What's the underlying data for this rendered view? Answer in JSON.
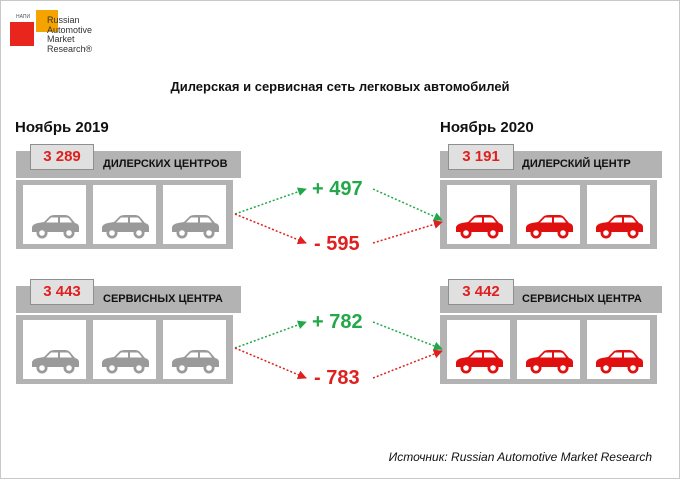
{
  "logo": {
    "small_text": "НАПИ",
    "lines": [
      "Russian",
      "Automotive",
      "Market",
      "Research®"
    ]
  },
  "title": "Дилерская и сервисная сеть легковых автомобилей",
  "left": {
    "year": "Ноябрь 2019",
    "dealers": {
      "count": "3 289",
      "label": "ДИЛЕРСКИХ ЦЕНТРОВ"
    },
    "service": {
      "count": "3 443",
      "label": "СЕРВИСНЫХ ЦЕНТРА"
    }
  },
  "right": {
    "year": "Ноябрь 2020",
    "dealers": {
      "count": "3 191",
      "label": "ДИЛЕРСКИЙ ЦЕНТР"
    },
    "service": {
      "count": "3 442",
      "label": "СЕРВИСНЫХ ЦЕНТРА"
    }
  },
  "changes": {
    "dealers": {
      "opened": "+ 497",
      "closed": "- 595"
    },
    "service": {
      "opened": "+ 782",
      "closed": "- 783"
    }
  },
  "colors": {
    "gray_car": "#9a9a9a",
    "red_car": "#e01010",
    "increase": "#22a84a",
    "decrease": "#e01f1f"
  },
  "icons": {
    "car": "car-icon",
    "arrow": "dotted-arrow"
  },
  "source": "Источник: Russian Automotive Market Research"
}
